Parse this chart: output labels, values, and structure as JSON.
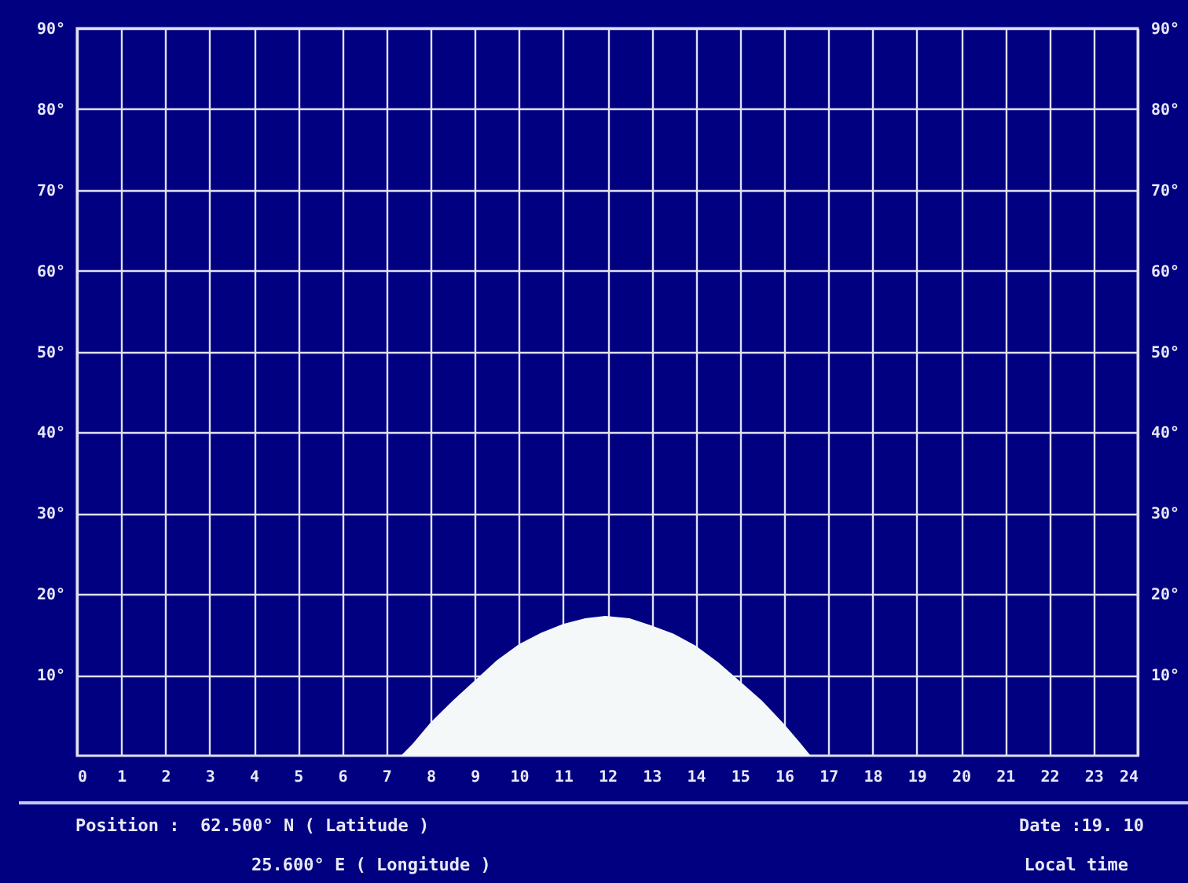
{
  "chart_data": {
    "type": "area",
    "x": [
      7.33,
      7.6,
      8,
      8.5,
      9,
      9.5,
      10,
      10.5,
      11,
      11.5,
      11.95,
      12.5,
      13,
      13.5,
      14,
      14.5,
      15,
      15.5,
      16,
      16.3,
      16.6
    ],
    "series": [
      {
        "color": "#f4f8f8",
        "values": [
          0,
          1.5,
          4.1,
          6.8,
          9.3,
          11.8,
          13.8,
          15.2,
          16.3,
          17.0,
          17.3,
          17.0,
          16.1,
          15.1,
          13.6,
          11.6,
          9.2,
          6.8,
          3.9,
          2.0,
          0
        ]
      }
    ],
    "xlim": [
      0,
      24
    ],
    "xticks": [
      0,
      1,
      2,
      3,
      4,
      5,
      6,
      7,
      8,
      9,
      10,
      11,
      12,
      13,
      14,
      15,
      16,
      17,
      18,
      19,
      20,
      21,
      22,
      23,
      24
    ],
    "ylim": [
      0,
      90
    ],
    "yticks": [
      {
        "value": 10,
        "label": "10°"
      },
      {
        "value": 20,
        "label": "20°"
      },
      {
        "value": 30,
        "label": "30°"
      },
      {
        "value": 40,
        "label": "40°"
      },
      {
        "value": 50,
        "label": "50°"
      },
      {
        "value": 60,
        "label": "60°"
      },
      {
        "value": 70,
        "label": "70°"
      },
      {
        "value": 80,
        "label": "80°"
      },
      {
        "value": 90,
        "label": "90°"
      }
    ],
    "y2lim": [
      0,
      90
    ],
    "y2ticks": [
      {
        "value": 10,
        "label": "10°"
      },
      {
        "value": 20,
        "label": "20°"
      },
      {
        "value": 30,
        "label": "30°"
      },
      {
        "value": 40,
        "label": "40°"
      },
      {
        "value": 50,
        "label": "50°"
      },
      {
        "value": 60,
        "label": "60°"
      },
      {
        "value": 70,
        "label": "70°"
      },
      {
        "value": 80,
        "label": "80°"
      },
      {
        "value": 90,
        "label": "90°"
      }
    ],
    "grid": true,
    "annotations": [
      "Position :  62.500° N ( Latitude )",
      "25.600° E ( Longitude )",
      "Date :19. 10",
      "Local time"
    ]
  }
}
